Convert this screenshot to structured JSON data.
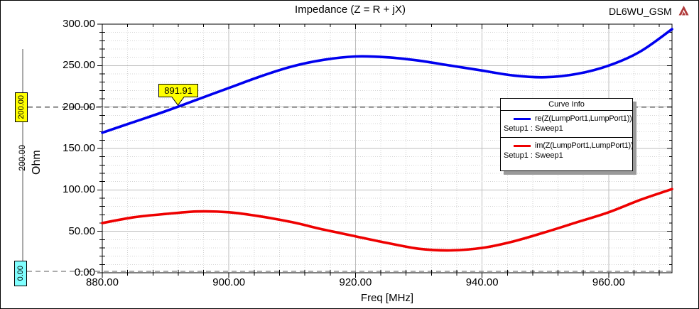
{
  "header": {
    "title": "Impedance (Z = R + jX)",
    "project_label": "DL6WU_GSM",
    "logo_icon": "ansoft-triangle-icon",
    "logo_color": "#b03a3a"
  },
  "axes": {
    "x": {
      "label": "Freq [MHz]",
      "min": 880,
      "max": 970,
      "major_step": 20,
      "minor_step": 4,
      "tick_labels": [
        "880.00",
        "900.00",
        "920.00",
        "940.00",
        "960.00"
      ]
    },
    "y": {
      "label": "Ohm",
      "min": 0,
      "max": 300,
      "major_step": 50,
      "minor_step": 10,
      "tick_labels": [
        "0.00",
        "50.00",
        "100.00",
        "150.00",
        "200.00",
        "250.00",
        "300.00"
      ]
    }
  },
  "legend": {
    "title": "Curve Info",
    "entries": [
      {
        "swatch_color": "#0000ee",
        "label": "re(Z(LumpPort1,LumpPort1))",
        "sublabel": "Setup1 : Sweep1"
      },
      {
        "swatch_color": "#ee0000",
        "label": "im(Z(LumpPort1,LumpPort1))",
        "sublabel": "Setup1 : Sweep1"
      }
    ]
  },
  "markers": {
    "x_marker": {
      "label": "891.91",
      "x": 891.91,
      "y": 200,
      "box_color": "#ffff00"
    },
    "y_marker_high": {
      "label": "200.00",
      "value": 200,
      "box_color": "#ffff00"
    },
    "y_marker_low": {
      "label": "0.00",
      "value": 0,
      "box_color": "#80ffff"
    },
    "delta_label": "200.00"
  },
  "chart_data": {
    "type": "line",
    "title": "Impedance (Z = R + jX)",
    "xlabel": "Freq [MHz]",
    "ylabel": "Ohm",
    "xlim": [
      880,
      970
    ],
    "ylim": [
      0,
      300
    ],
    "grid": true,
    "legend_position": "right-middle",
    "x": [
      880,
      885,
      890,
      895,
      900,
      905,
      910,
      915,
      920,
      925,
      930,
      935,
      940,
      945,
      950,
      955,
      960,
      965,
      970
    ],
    "series": [
      {
        "name": "re(Z(LumpPort1,LumpPort1))",
        "color": "#0000ee",
        "values": [
          169,
          182,
          195,
          209,
          223,
          237,
          249,
          257,
          261,
          260,
          256,
          250,
          244,
          238,
          236,
          240,
          250,
          267,
          294
        ]
      },
      {
        "name": "im(Z(LumpPort1,LumpPort1))",
        "color": "#ee0000",
        "values": [
          60,
          67,
          71,
          74,
          73,
          68,
          61,
          52,
          44,
          36,
          29,
          27,
          30,
          38,
          49,
          61,
          73,
          88,
          101
        ]
      }
    ],
    "annotations": [
      {
        "text": "891.91",
        "x": 891.91,
        "y": 200
      },
      {
        "text": "200.00",
        "y": 200
      },
      {
        "text": "0.00",
        "y": 0
      }
    ]
  }
}
